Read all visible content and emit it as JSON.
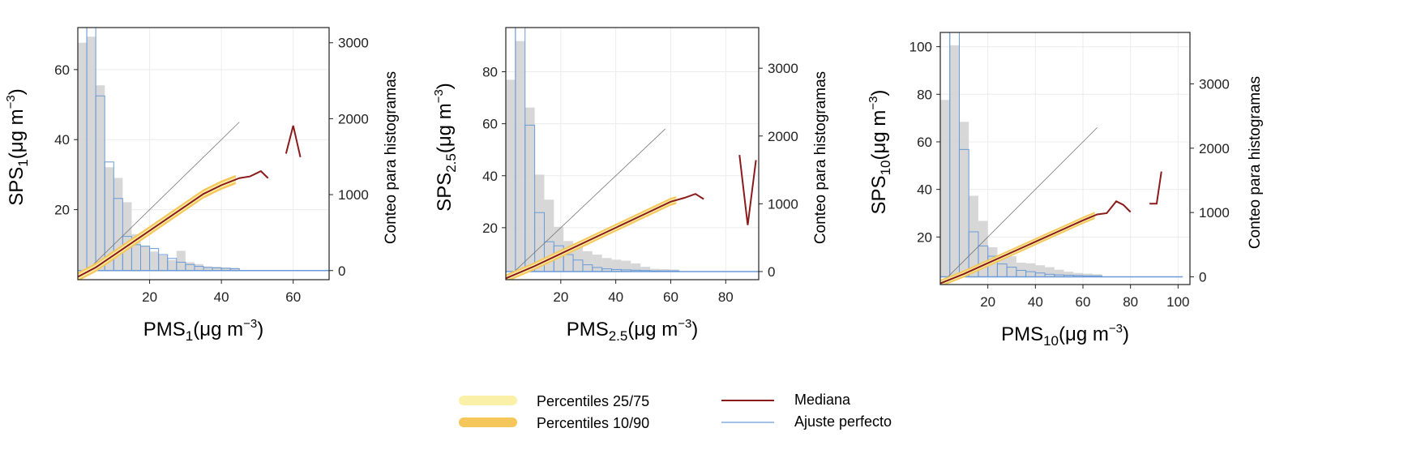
{
  "legend": {
    "items": [
      {
        "label": "Percentiles 25/75",
        "kind": "band",
        "color": "#FAF0A8"
      },
      {
        "label": "Percentiles 10/90",
        "kind": "band",
        "color": "#F5C75A"
      },
      {
        "label": "Mediana",
        "kind": "line",
        "color": "#8B1A1A"
      },
      {
        "label": "Ajuste perfecto",
        "kind": "line",
        "color": "#6A9BD8"
      }
    ]
  },
  "colors": {
    "median": "#8B1A1A",
    "perfect_fit": "#6A9BD8",
    "p10_90": "#F5C75A",
    "p25_75": "#FAF0A8",
    "hist_reference": "#D3D3D3",
    "hist_sensor": "#6A9BD8",
    "identity_line": "#777777"
  },
  "chart_data": [
    {
      "type": "line",
      "xlabel": {
        "main": "PMS",
        "sub": "1",
        "unit": "(μg m",
        "sup": "−3",
        "close": ")"
      },
      "ylabel": {
        "main": "SPS",
        "sub": "1",
        "unit": "(μg m",
        "sup": "−3",
        "close": ")"
      },
      "y2label": "Conteo para histogramas",
      "xlim": [
        0,
        70
      ],
      "ylim": [
        0,
        72
      ],
      "y2lim": [
        -120,
        3200
      ],
      "xticks": [
        20,
        40,
        60
      ],
      "yticks": [
        20,
        40,
        60
      ],
      "y2ticks": [
        0,
        1000,
        2000,
        3000
      ],
      "grid": true,
      "histograms": {
        "bin_width": 2.5,
        "bin_starts": [
          0,
          2.5,
          5,
          7.5,
          10,
          12.5,
          15,
          17.5,
          20,
          22.5,
          25,
          27.5,
          30,
          32.5,
          35,
          37.5,
          40,
          42.5
        ],
        "reference_counts": [
          3000,
          3080,
          2440,
          1360,
          1220,
          900,
          480,
          330,
          250,
          200,
          140,
          260,
          110,
          85,
          55,
          50,
          40,
          35
        ],
        "sensor_counts": [
          3250,
          3250,
          2300,
          1430,
          950,
          450,
          340,
          320,
          290,
          210,
          160,
          110,
          80,
          55,
          40,
          35,
          30,
          25
        ],
        "sensor_baseline_to": 70
      },
      "identity_line": {
        "x": [
          0,
          45
        ],
        "y": [
          0,
          45
        ]
      },
      "median": {
        "x": [
          0,
          5,
          10,
          15,
          20,
          25,
          30,
          35,
          40,
          45,
          48,
          51,
          53
        ],
        "y": [
          0.8,
          3.5,
          7,
          10.5,
          14,
          17.5,
          21,
          24.5,
          27,
          29,
          29.5,
          31,
          29
        ]
      },
      "median_extra": {
        "x": [
          58,
          60,
          62
        ],
        "y": [
          36,
          44,
          35
        ]
      },
      "p10_90_halfwidth": 1.3,
      "p25_75_halfwidth": 0.7,
      "band_x_max": 44
    },
    {
      "type": "line",
      "xlabel": {
        "main": "PMS",
        "sub": "2.5",
        "unit": "(μg m",
        "sup": "−3",
        "close": ")"
      },
      "ylabel": {
        "main": "SPS",
        "sub": "2.5",
        "unit": "(μg m",
        "sup": "−3",
        "close": ")"
      },
      "y2label": "Conteo para histogramas",
      "xlim": [
        0,
        92
      ],
      "ylim": [
        0,
        97
      ],
      "y2lim": [
        -120,
        3600
      ],
      "xticks": [
        20,
        40,
        60,
        80
      ],
      "yticks": [
        20,
        40,
        60,
        80
      ],
      "y2ticks": [
        0,
        1000,
        2000,
        3000
      ],
      "grid": true,
      "histograms": {
        "bin_width": 3.5,
        "bin_starts": [
          0,
          3.5,
          7,
          10.5,
          14,
          17.5,
          21,
          24.5,
          28,
          31.5,
          35,
          38.5,
          42,
          45.5,
          49,
          52.5,
          56,
          59.5
        ],
        "reference_counts": [
          2830,
          3400,
          2420,
          1430,
          1060,
          660,
          450,
          380,
          300,
          250,
          200,
          175,
          160,
          120,
          70,
          40,
          35,
          30
        ],
        "sensor_counts": [
          3600,
          3600,
          2160,
          870,
          440,
          380,
          250,
          170,
          100,
          60,
          40,
          30,
          25,
          20,
          15,
          10,
          10,
          10
        ],
        "sensor_baseline_to": 92
      },
      "identity_line": {
        "x": [
          0,
          58
        ],
        "y": [
          0,
          58
        ]
      },
      "median": {
        "x": [
          0,
          10,
          20,
          30,
          40,
          50,
          60,
          65,
          69,
          72
        ],
        "y": [
          0.5,
          5,
          10,
          15,
          20,
          25,
          30,
          31.5,
          33,
          31
        ]
      },
      "median_extra": {
        "x": [
          85,
          88,
          91
        ],
        "y": [
          48,
          21,
          46
        ]
      },
      "p10_90_halfwidth": 1.5,
      "p25_75_halfwidth": 0.8,
      "band_x_max": 62
    },
    {
      "type": "line",
      "xlabel": {
        "main": "PMS",
        "sub": "10",
        "unit": "(μg m",
        "sup": "−3",
        "close": ")"
      },
      "ylabel": {
        "main": "SPS",
        "sub": "10",
        "unit": "(μg m",
        "sup": "−3",
        "close": ")"
      },
      "y2label": "Conteo para histogramas",
      "xlim": [
        0,
        105
      ],
      "ylim": [
        0,
        106
      ],
      "y2lim": [
        -120,
        3800
      ],
      "xticks": [
        20,
        40,
        60,
        80,
        100
      ],
      "yticks": [
        20,
        40,
        60,
        80,
        100
      ],
      "y2ticks": [
        0,
        1000,
        2000,
        3000
      ],
      "grid": true,
      "histograms": {
        "bin_width": 4,
        "bin_starts": [
          0,
          4,
          8,
          12,
          16,
          20,
          24,
          28,
          32,
          36,
          40,
          44,
          48,
          52,
          56,
          60,
          64
        ],
        "reference_counts": [
          2750,
          3600,
          2410,
          1260,
          870,
          460,
          340,
          320,
          220,
          210,
          180,
          150,
          110,
          80,
          60,
          50,
          40
        ],
        "sensor_counts": [
          3800,
          3800,
          1980,
          700,
          480,
          320,
          200,
          150,
          100,
          80,
          60,
          40,
          30,
          25,
          20,
          15,
          15
        ],
        "sensor_baseline_to": 102
      },
      "identity_line": {
        "x": [
          0,
          66
        ],
        "y": [
          0,
          66
        ]
      },
      "median": {
        "x": [
          0,
          10,
          20,
          30,
          40,
          50,
          60,
          66,
          70,
          74,
          77,
          80
        ],
        "y": [
          0.5,
          4.5,
          9,
          13.5,
          18,
          22.5,
          27,
          29.5,
          30,
          35,
          33.5,
          30.5
        ]
      },
      "median_extra": {
        "x": [
          88,
          91,
          93
        ],
        "y": [
          34,
          34,
          47.5
        ]
      },
      "p10_90_halfwidth": 1.5,
      "p25_75_halfwidth": 0.8,
      "band_x_max": 65
    }
  ]
}
